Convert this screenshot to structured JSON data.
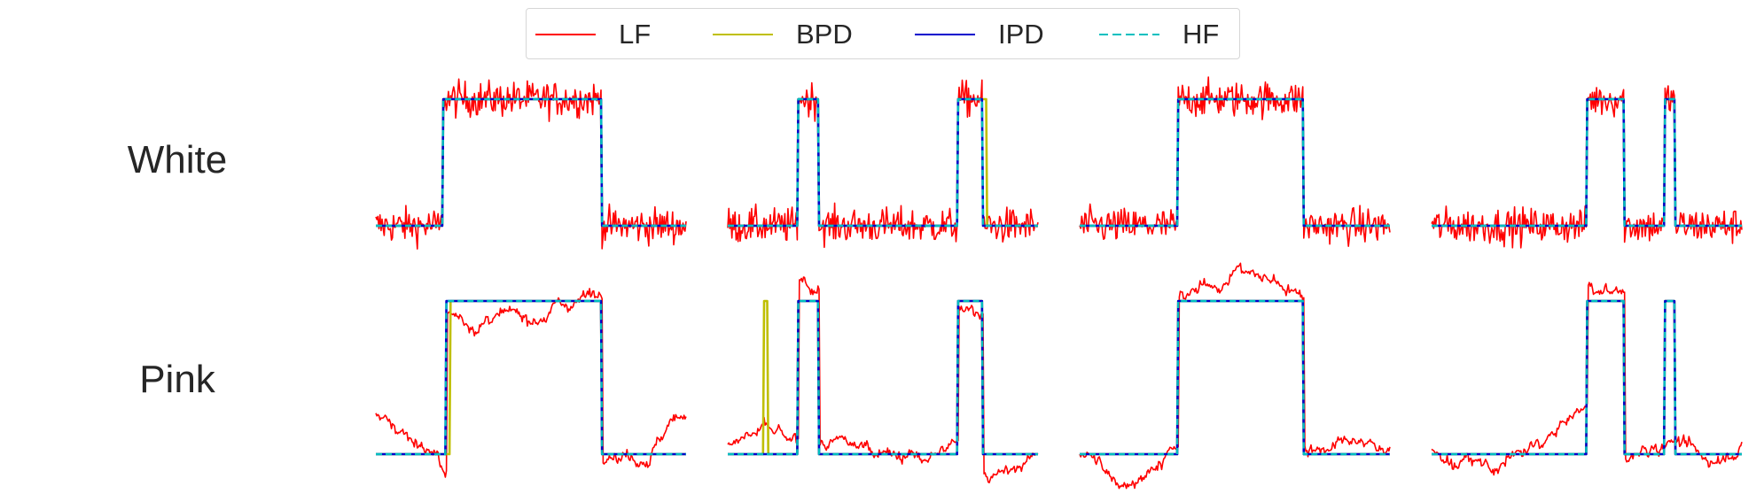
{
  "chart_data": {
    "type": "line",
    "title": "",
    "legend_position": "top-center",
    "grid": false,
    "axes_visible": false,
    "series": [
      {
        "name": "LF",
        "color": "#ff0000",
        "style": "solid"
      },
      {
        "name": "BPD",
        "color": "#bfbf00",
        "style": "solid"
      },
      {
        "name": "IPD",
        "color": "#0000cd",
        "style": "solid"
      },
      {
        "name": "HF",
        "color": "#00bfbf",
        "style": "dashed"
      }
    ],
    "rows": [
      {
        "label": "White",
        "panels": [
          {
            "n": 300,
            "pulses": [
              [
                65,
                218
              ]
            ],
            "bpd_shift": [],
            "bpd_spikes": [],
            "trend": []
          },
          {
            "n": 300,
            "pulses": [
              [
                68,
                88
              ],
              [
                222,
                246
              ]
            ],
            "bpd_shift": [
              [
                246,
                250
              ]
            ],
            "bpd_spikes": [],
            "trend": []
          },
          {
            "n": 300,
            "pulses": [
              [
                95,
                216
              ]
            ],
            "bpd_shift": [],
            "bpd_spikes": [],
            "trend": []
          },
          {
            "n": 300,
            "pulses": [
              [
                150,
                186
              ],
              [
                225,
                235
              ]
            ],
            "bpd_shift": [],
            "bpd_spikes": [],
            "trend": []
          }
        ]
      },
      {
        "label": "Pink",
        "panels": [
          {
            "n": 300,
            "pulses": [
              [
                68,
                218
              ]
            ],
            "bpd_shift": [
              [
                68,
                72
              ]
            ],
            "bpd_spikes": [],
            "trend": [
              [
                0,
                0.28
              ],
              [
                20,
                0.18
              ],
              [
                50,
                0.05
              ],
              [
                68,
                -0.15
              ],
              [
                68,
                0.9
              ],
              [
                100,
                0.85
              ],
              [
                160,
                0.92
              ],
              [
                218,
                1.08
              ],
              [
                218,
                0.05
              ],
              [
                260,
                -0.02
              ],
              [
                300,
                0.3
              ]
            ]
          },
          {
            "n": 300,
            "pulses": [
              [
                68,
                88
              ],
              [
                222,
                246
              ]
            ],
            "bpd_shift": [],
            "bpd_spikes": [
              [
                35,
                39
              ]
            ],
            "trend": [
              [
                0,
                0.08
              ],
              [
                35,
                0.15
              ],
              [
                68,
                0.05
              ],
              [
                68,
                1.1
              ],
              [
                88,
                1.08
              ],
              [
                88,
                0.05
              ],
              [
                150,
                0.05
              ],
              [
                190,
                -0.05
              ],
              [
                222,
                0.05
              ],
              [
                222,
                0.92
              ],
              [
                246,
                0.95
              ],
              [
                246,
                -0.1
              ],
              [
                270,
                -0.15
              ],
              [
                300,
                0.02
              ]
            ]
          },
          {
            "n": 300,
            "pulses": [
              [
                95,
                216
              ]
            ],
            "bpd_shift": [],
            "bpd_spikes": [],
            "trend": [
              [
                0,
                0.02
              ],
              [
                40,
                -0.2
              ],
              [
                95,
                0.02
              ],
              [
                95,
                1.0
              ],
              [
                155,
                1.2
              ],
              [
                216,
                1.05
              ],
              [
                216,
                0.05
              ],
              [
                300,
                0.05
              ]
            ]
          },
          {
            "n": 300,
            "pulses": [
              [
                150,
                186
              ],
              [
                225,
                235
              ]
            ],
            "bpd_shift": [],
            "bpd_spikes": [],
            "trend": [
              [
                0,
                0.0
              ],
              [
                60,
                -0.1
              ],
              [
                100,
                0.05
              ],
              [
                130,
                0.2
              ],
              [
                150,
                0.3
              ],
              [
                150,
                1.08
              ],
              [
                186,
                1.05
              ],
              [
                186,
                -0.05
              ],
              [
                225,
                0.1
              ],
              [
                235,
                0.1
              ],
              [
                260,
                -0.05
              ],
              [
                300,
                0.05
              ]
            ]
          }
        ]
      }
    ]
  }
}
